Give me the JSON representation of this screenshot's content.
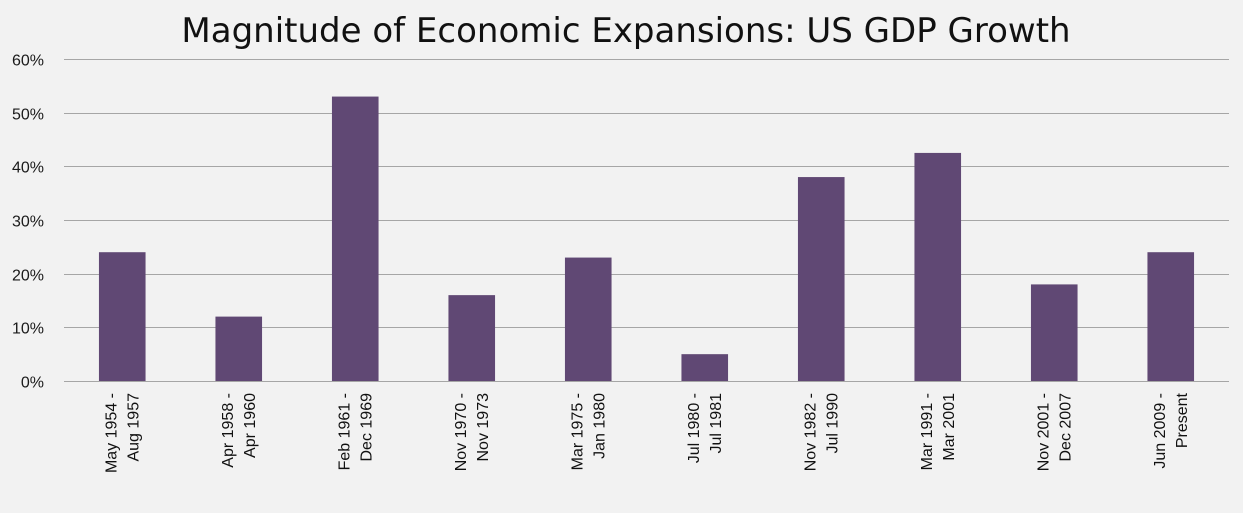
{
  "chart_data": {
    "type": "bar",
    "title": "Magnitude of Economic Expansions: US GDP Growth",
    "xlabel": "",
    "ylabel": "",
    "categories": [
      [
        "May 1954 -",
        "Aug 1957"
      ],
      [
        "Apr 1958 -",
        "Apr 1960"
      ],
      [
        "Feb 1961 -",
        "Dec 1969"
      ],
      [
        "Nov 1970 -",
        "Nov 1973"
      ],
      [
        "Mar 1975 -",
        "Jan 1980"
      ],
      [
        "Jul 1980 -",
        "Jul 1981"
      ],
      [
        "Nov 1982 -",
        "Jul 1990"
      ],
      [
        "Mar 1991 -",
        "Mar 2001"
      ],
      [
        "Nov 2001 -",
        "Dec 2007"
      ],
      [
        "Jun 2009 -",
        "Present"
      ]
    ],
    "values": [
      24,
      12,
      53,
      16,
      23,
      5,
      38,
      42.5,
      18,
      24
    ],
    "ylim": [
      0,
      60
    ],
    "yticks": [
      0,
      10,
      20,
      30,
      40,
      50,
      60
    ],
    "ytick_labels": [
      "0%",
      "10%",
      "20%",
      "30%",
      "40%",
      "50%",
      "60%"
    ],
    "grid": true,
    "legend": "none",
    "bar_color": "#604874",
    "background_color": "#f2f2f2",
    "grid_color": "#a6a6a6"
  }
}
